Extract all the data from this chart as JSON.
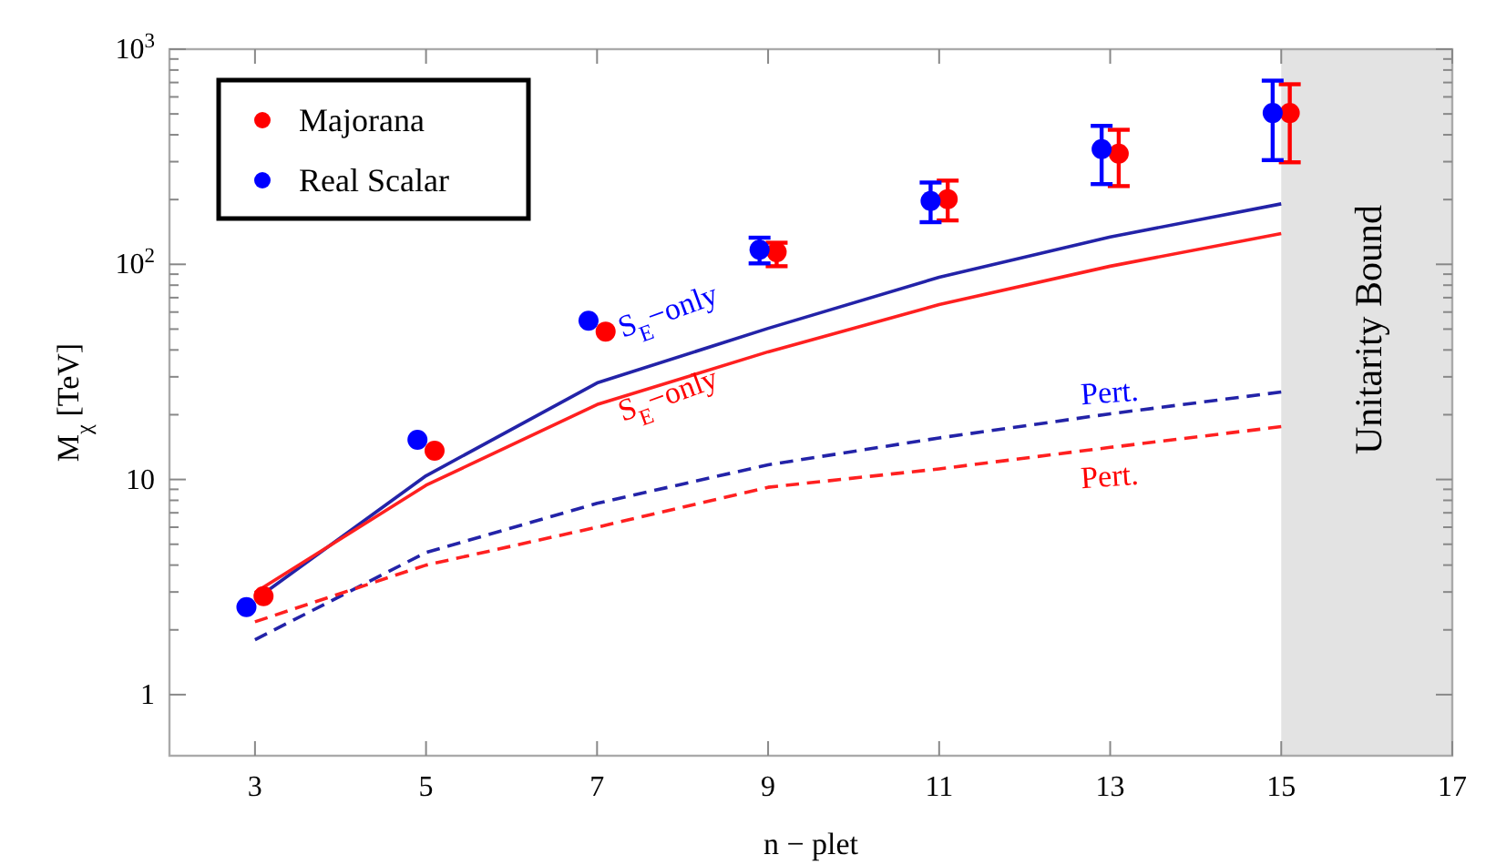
{
  "chart_data": {
    "type": "scatter",
    "xlabel": "n − plet",
    "ylabel": "M$_{χ}$ [TeV]",
    "xlim": [
      2,
      17
    ],
    "xticks": [
      3,
      5,
      7,
      9,
      11,
      13,
      15,
      17
    ],
    "ylim": [
      0.52,
      1000
    ],
    "log": "y",
    "yticks": [
      1,
      {
        "value": 2,
        "label": null
      },
      {
        "value": 3,
        "label": null
      },
      {
        "value": 4,
        "label": null
      },
      {
        "value": 5,
        "label": null
      },
      {
        "value": 6,
        "label": null
      },
      {
        "value": 7,
        "label": null
      },
      {
        "value": 8,
        "label": null
      },
      {
        "value": 9,
        "label": null
      },
      10,
      {
        "value": 20,
        "label": null
      },
      {
        "value": 30,
        "label": null
      },
      {
        "value": 40,
        "label": null
      },
      {
        "value": 50,
        "label": null
      },
      {
        "value": 60,
        "label": null
      },
      {
        "value": 70,
        "label": null
      },
      {
        "value": 80,
        "label": null
      },
      {
        "value": 90,
        "label": null
      },
      {
        "value": 100,
        "label": "10$^{2}$"
      },
      {
        "value": 200,
        "label": null
      },
      {
        "value": 300,
        "label": null
      },
      {
        "value": 400,
        "label": null
      },
      {
        "value": 500,
        "label": null
      },
      {
        "value": 600,
        "label": null
      },
      {
        "value": 700,
        "label": null
      },
      {
        "value": 800,
        "label": null
      },
      {
        "value": 900,
        "label": null
      },
      {
        "value": 1000,
        "label": "10$^{3}$"
      }
    ],
    "legend": "top left",
    "marker": "circle",
    "series": [
      {
        "name": "Majorana",
        "color": "#ff0000",
        "x": [
          3.1,
          5.1,
          7.1,
          9.1,
          11.1,
          13.1,
          15.1
        ],
        "values": [
          2.87,
          13.6,
          48.7,
          114,
          201,
          327,
          505
        ],
        "errors": [
          null,
          null,
          null,
          [
            98,
            126
          ],
          [
            160,
            245
          ],
          [
            231,
            422
          ],
          [
            298,
            687
          ]
        ]
      },
      {
        "name": "Real Scalar",
        "color": "#0000ff",
        "x": [
          2.9,
          4.9,
          6.9,
          8.9,
          10.9,
          12.9,
          14.9
        ],
        "values": [
          2.55,
          15.3,
          54.7,
          117,
          197,
          343,
          505
        ],
        "errors": [
          null,
          null,
          null,
          [
            101,
            133
          ],
          [
            157,
            240
          ],
          [
            236,
            440
          ],
          [
            305,
            714
          ]
        ]
      },
      {
        "type": "line",
        "color": "#2323a8",
        "line_style": "solid",
        "marker": "none",
        "x": [
          3,
          5,
          7,
          9,
          11,
          13,
          15
        ],
        "values": [
          2.76,
          10.4,
          28.1,
          50.4,
          87.1,
          134,
          191
        ]
      },
      {
        "type": "line",
        "color": "#ff2020",
        "line_style": "solid",
        "marker": "none",
        "x": [
          3,
          5,
          7,
          9,
          11,
          13,
          15
        ],
        "values": [
          2.98,
          9.4,
          22.3,
          39.2,
          65,
          98,
          139
        ]
      },
      {
        "type": "line",
        "color": "#2323a8",
        "line_style": "dashed",
        "marker": "none",
        "x": [
          3,
          5,
          7,
          9,
          11,
          13,
          15
        ],
        "values": [
          1.8,
          4.58,
          7.75,
          11.7,
          15.6,
          20.2,
          25.5
        ]
      },
      {
        "type": "line",
        "color": "#ff2020",
        "line_style": "dashed",
        "marker": "none",
        "x": [
          3,
          5,
          7,
          9,
          11,
          13,
          15
        ],
        "values": [
          2.18,
          4.0,
          6.0,
          9.2,
          11.2,
          14.1,
          17.6
        ]
      }
    ],
    "bands": [
      {
        "axis": "x",
        "from": 15,
        "to": 17,
        "label": "Unitarity Bound",
        "color": "#e3e3e3"
      }
    ],
    "annotations": [
      "S$_{E}$−only",
      "S$_{E}$−only",
      "Pert.",
      "Pert."
    ]
  }
}
